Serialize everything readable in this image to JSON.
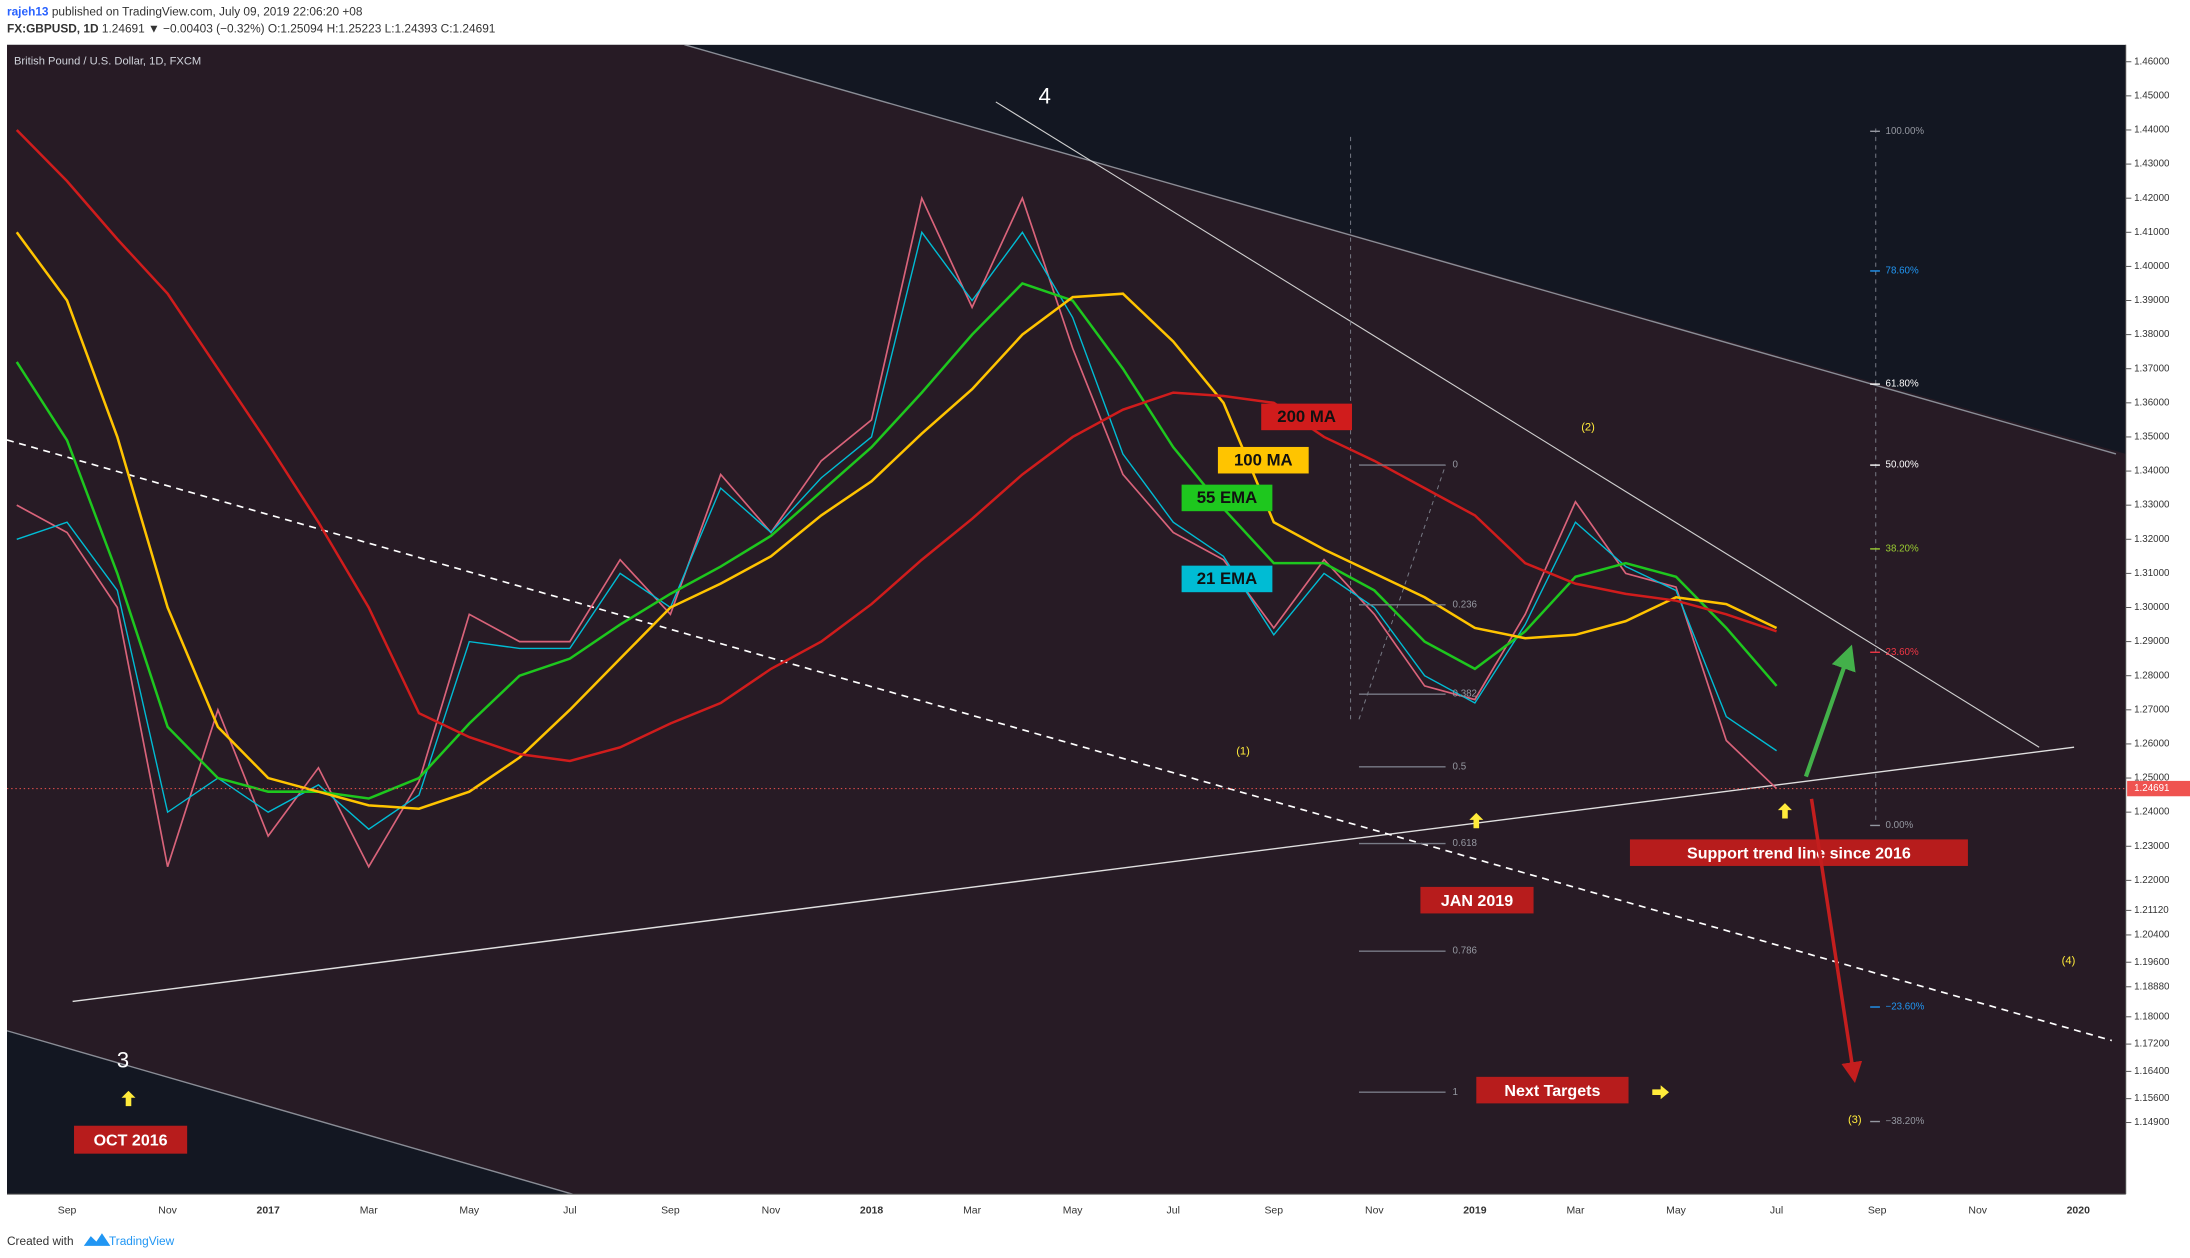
{
  "header": {
    "user": "rajeh13",
    "published": "published on TradingView.com, July 09, 2019 22:06:20 +08",
    "symbol": "FX:GBPUSD, 1D",
    "quote": "1.24691 ▼ −0.00403 (−0.32%) O:1.25094 H:1.25223 L:1.24393 C:1.24691"
  },
  "chart_data": {
    "type": "line",
    "title": "British Pound / U.S. Dollar, 1D, FXCM",
    "categories": [
      null,
      "Sep",
      null,
      "Nov",
      null,
      "2017",
      null,
      "Mar",
      null,
      "May",
      null,
      "Jul",
      null,
      "Sep",
      null,
      "Nov",
      null,
      "2018",
      null,
      "Mar",
      null,
      "May",
      null,
      "Jul",
      null,
      "Sep",
      null,
      "Nov",
      null,
      "2019",
      null,
      "Mar",
      null,
      "May",
      null,
      "Jul",
      null,
      "Sep",
      null,
      "Nov",
      null,
      "2020"
    ],
    "series": [
      {
        "color": "#d9637a",
        "values": [
          1.33,
          1.322,
          1.3,
          1.224,
          1.27,
          1.233,
          1.253,
          1.224,
          1.249,
          1.298,
          1.29,
          1.29,
          1.314,
          1.298,
          1.339,
          1.322,
          1.343,
          1.355,
          1.42,
          1.388,
          1.42,
          1.376,
          1.339,
          1.322,
          1.314,
          1.294,
          1.314,
          1.298,
          1.277,
          1.273,
          1.298,
          1.331,
          1.31,
          1.306,
          1.261,
          1.24691,
          null,
          null,
          null,
          null,
          null,
          null
        ]
      },
      {
        "name": "21 EMA",
        "color": "#00bcd4",
        "values": [
          1.32,
          1.325,
          1.305,
          1.24,
          1.25,
          1.24,
          1.248,
          1.235,
          1.245,
          1.29,
          1.288,
          1.288,
          1.31,
          1.3,
          1.335,
          1.322,
          1.338,
          1.35,
          1.41,
          1.39,
          1.41,
          1.385,
          1.345,
          1.325,
          1.315,
          1.292,
          1.31,
          1.3,
          1.28,
          1.272,
          1.295,
          1.325,
          1.312,
          1.305,
          1.268,
          1.258,
          null,
          null,
          null,
          null,
          null,
          null
        ]
      },
      {
        "name": "55 EMA",
        "color": "#1ec71e",
        "values": [
          1.372,
          1.349,
          1.31,
          1.265,
          1.25,
          1.246,
          1.246,
          1.244,
          1.25,
          1.266,
          1.28,
          1.285,
          1.295,
          1.304,
          1.312,
          1.321,
          1.334,
          1.347,
          1.363,
          1.38,
          1.395,
          1.39,
          1.37,
          1.347,
          1.329,
          1.313,
          1.313,
          1.305,
          1.29,
          1.282,
          1.293,
          1.309,
          1.313,
          1.309,
          1.294,
          1.277,
          null,
          null,
          null,
          null,
          null,
          null
        ]
      },
      {
        "name": "100 MA",
        "color": "#ffc400",
        "values": [
          1.41,
          1.39,
          1.35,
          1.3,
          1.265,
          1.25,
          1.246,
          1.242,
          1.241,
          1.246,
          1.256,
          1.27,
          1.285,
          1.3,
          1.307,
          1.315,
          1.327,
          1.337,
          1.351,
          1.364,
          1.38,
          1.391,
          1.392,
          1.378,
          1.36,
          1.325,
          1.317,
          1.31,
          1.303,
          1.294,
          1.291,
          1.292,
          1.296,
          1.303,
          1.301,
          1.294,
          null,
          null,
          null,
          null,
          null,
          null
        ]
      },
      {
        "name": "200 MA",
        "color": "#d01c1c",
        "values": [
          1.44,
          1.425,
          1.408,
          1.392,
          1.37,
          1.348,
          1.325,
          1.3,
          1.269,
          1.262,
          1.257,
          1.255,
          1.259,
          1.266,
          1.272,
          1.282,
          1.29,
          1.301,
          1.314,
          1.326,
          1.339,
          1.35,
          1.358,
          1.363,
          1.362,
          1.36,
          1.35,
          1.343,
          1.335,
          1.327,
          1.313,
          1.307,
          1.304,
          1.302,
          1.298,
          1.293,
          null,
          null,
          null,
          null,
          null,
          null
        ]
      }
    ],
    "ylim": [
      1.128,
      1.465
    ],
    "yticks": [
      {
        "value": 1.46,
        "label": "1.46000"
      },
      {
        "value": 1.45,
        "label": "1.45000"
      },
      {
        "value": 1.44,
        "label": "1.44000"
      },
      {
        "value": 1.43,
        "label": "1.43000"
      },
      {
        "value": 1.42,
        "label": "1.42000"
      },
      {
        "value": 1.41,
        "label": "1.41000"
      },
      {
        "value": 1.4,
        "label": "1.40000"
      },
      {
        "value": 1.39,
        "label": "1.39000"
      },
      {
        "value": 1.38,
        "label": "1.38000"
      },
      {
        "value": 1.37,
        "label": "1.37000"
      },
      {
        "value": 1.36,
        "label": "1.36000"
      },
      {
        "value": 1.35,
        "label": "1.35000"
      },
      {
        "value": 1.34,
        "label": "1.34000"
      },
      {
        "value": 1.33,
        "label": "1.33000"
      },
      {
        "value": 1.32,
        "label": "1.32000"
      },
      {
        "value": 1.31,
        "label": "1.31000"
      },
      {
        "value": 1.3,
        "label": "1.30000"
      },
      {
        "value": 1.29,
        "label": "1.29000"
      },
      {
        "value": 1.28,
        "label": "1.28000"
      },
      {
        "value": 1.27,
        "label": "1.27000"
      },
      {
        "value": 1.26,
        "label": "1.26000"
      },
      {
        "value": 1.25,
        "label": "1.25000"
      },
      {
        "value": 1.24,
        "label": "1.24000"
      },
      {
        "value": 1.23,
        "label": "1.23000"
      },
      {
        "value": 1.22,
        "label": "1.22000"
      },
      {
        "value": 1.2112,
        "label": "1.21120"
      },
      {
        "value": 1.204,
        "label": "1.20400"
      },
      {
        "value": 1.196,
        "label": "1.19600"
      },
      {
        "value": 1.1888,
        "label": "1.18880"
      },
      {
        "value": 1.18,
        "label": "1.18000"
      },
      {
        "value": 1.172,
        "label": "1.17200"
      },
      {
        "value": 1.164,
        "label": "1.16400"
      },
      {
        "value": 1.156,
        "label": "1.15600"
      },
      {
        "value": 1.149,
        "label": "1.14900"
      }
    ],
    "grid": false,
    "annotations": {
      "waves": [
        "4",
        "3",
        "(1)",
        "(2)",
        "(3)",
        "(4)"
      ],
      "notes": [
        "Support trend line since 2016",
        "JAN 2019",
        "OCT 2016",
        "Next Targets"
      ],
      "fib_right": [
        "100.00%",
        "78.60%",
        "61.80%",
        "50.00%",
        "38.20%",
        "23.60%",
        "0.00%",
        "−23.60%",
        "−38.20%"
      ],
      "fib_left": [
        "0",
        "0.236",
        "0.382",
        "0.5",
        "0.618",
        "0.786",
        "1"
      ]
    }
  },
  "footer": {
    "created": "Created with",
    "brand": "TradingView"
  }
}
